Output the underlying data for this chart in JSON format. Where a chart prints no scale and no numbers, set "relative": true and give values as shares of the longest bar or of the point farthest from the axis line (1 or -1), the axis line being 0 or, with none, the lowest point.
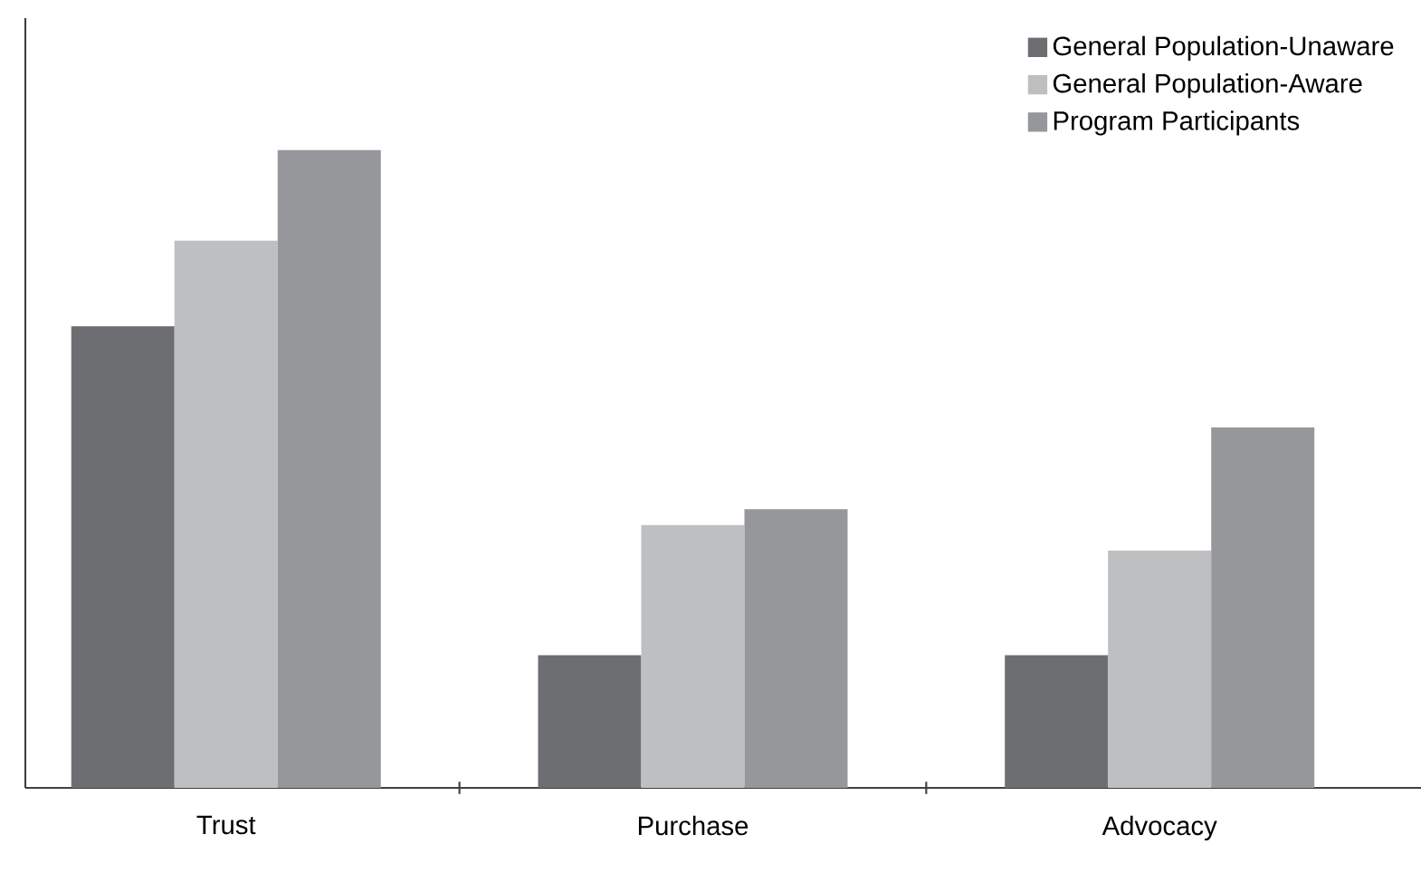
{
  "chart_data": {
    "type": "bar",
    "relative": true,
    "categories": [
      "Trust",
      "Purchase",
      "Advocacy"
    ],
    "series": [
      {
        "name": "General Population-Unaware",
        "color": "#6d6e72",
        "values": [
          0.724,
          0.208,
          0.208
        ]
      },
      {
        "name": "General Population-Aware",
        "color": "#bebfc1",
        "values": [
          0.858,
          0.412,
          0.372
        ]
      },
      {
        "name": "Program Participants",
        "color": "#96979b",
        "values": [
          1,
          0.437,
          0.565
        ]
      }
    ],
    "legend": "top right",
    "grid": false
  }
}
